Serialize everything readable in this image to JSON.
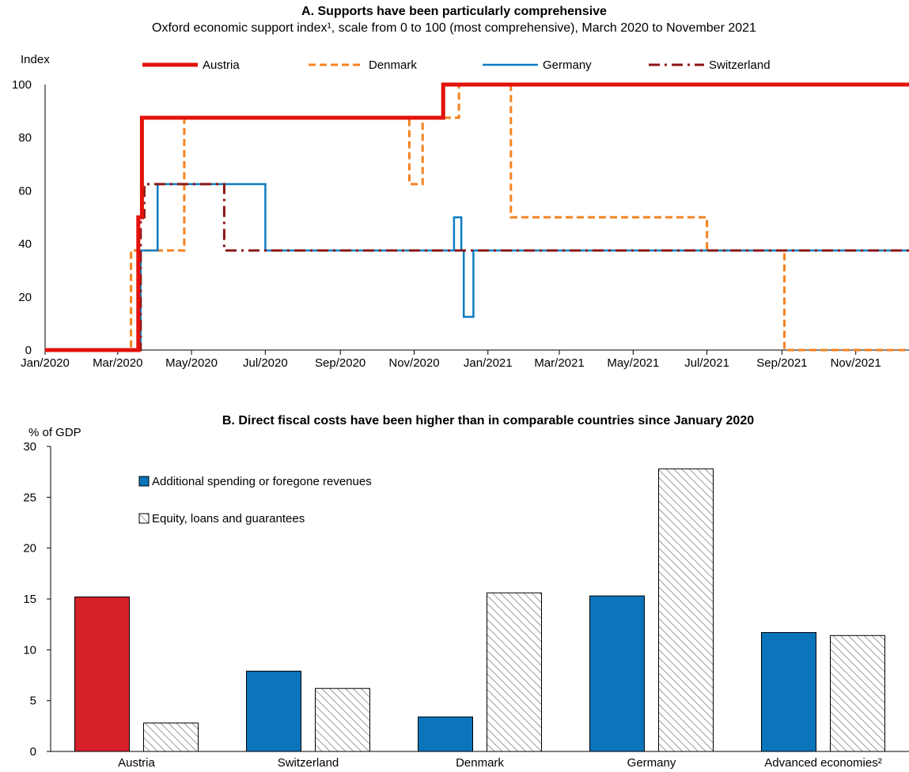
{
  "chart_data": [
    {
      "type": "line",
      "title": "A. Supports have been particularly comprehensive",
      "subtitle": "Oxford economic support index¹, scale from 0 to 100 (most comprehensive), March 2020 to November 2021",
      "ylabel": "Index",
      "ylim": [
        0,
        100
      ],
      "yticks": [
        "0",
        "20",
        "40",
        "60",
        "80",
        "100"
      ],
      "xlim": [
        "2020-01-01",
        "2021-12-15"
      ],
      "xticks": [
        {
          "date": "2020-01-01",
          "label": "Jan/2020"
        },
        {
          "date": "2020-03-01",
          "label": "Mar/2020"
        },
        {
          "date": "2020-05-01",
          "label": "May/2020"
        },
        {
          "date": "2020-07-01",
          "label": "Jul/2020"
        },
        {
          "date": "2020-09-01",
          "label": "Sep/2020"
        },
        {
          "date": "2020-11-01",
          "label": "Nov/2020"
        },
        {
          "date": "2021-01-01",
          "label": "Jan/2021"
        },
        {
          "date": "2021-03-01",
          "label": "Mar/2021"
        },
        {
          "date": "2021-05-01",
          "label": "May/2021"
        },
        {
          "date": "2021-07-01",
          "label": "Jul/2021"
        },
        {
          "date": "2021-09-01",
          "label": "Sep/2021"
        },
        {
          "date": "2021-11-01",
          "label": "Nov/2021"
        }
      ],
      "legend_position": "top",
      "series": [
        {
          "name": "Austria",
          "color": "#e3120b",
          "style": "solid-thick",
          "points": [
            [
              "2020-01-01",
              0
            ],
            [
              "2020-03-18",
              0
            ],
            [
              "2020-03-18",
              50
            ],
            [
              "2020-03-21",
              50
            ],
            [
              "2020-03-21",
              87.5
            ],
            [
              "2020-11-25",
              87.5
            ],
            [
              "2020-11-25",
              100
            ],
            [
              "2021-12-15",
              100
            ]
          ]
        },
        {
          "name": "Denmark",
          "color": "#f58220",
          "style": "dash",
          "points": [
            [
              "2020-01-01",
              0
            ],
            [
              "2020-03-12",
              0
            ],
            [
              "2020-03-12",
              37.5
            ],
            [
              "2020-04-25",
              37.5
            ],
            [
              "2020-04-25",
              87.5
            ],
            [
              "2020-10-28",
              87.5
            ],
            [
              "2020-10-28",
              62.5
            ],
            [
              "2020-11-08",
              62.5
            ],
            [
              "2020-11-08",
              87.5
            ],
            [
              "2020-12-08",
              87.5
            ],
            [
              "2020-12-08",
              100
            ],
            [
              "2021-01-20",
              100
            ],
            [
              "2021-01-20",
              50
            ],
            [
              "2021-07-01",
              50
            ],
            [
              "2021-07-01",
              37.5
            ],
            [
              "2021-09-03",
              37.5
            ],
            [
              "2021-09-03",
              0
            ],
            [
              "2021-12-15",
              0
            ]
          ]
        },
        {
          "name": "Germany",
          "color": "#0b7dc2",
          "style": "solid",
          "points": [
            [
              "2020-01-01",
              0
            ],
            [
              "2020-03-20",
              0
            ],
            [
              "2020-03-20",
              37.5
            ],
            [
              "2020-04-03",
              37.5
            ],
            [
              "2020-04-03",
              62.5
            ],
            [
              "2020-07-01",
              62.5
            ],
            [
              "2020-07-01",
              37.5
            ],
            [
              "2020-12-04",
              37.5
            ],
            [
              "2020-12-04",
              50
            ],
            [
              "2020-12-10",
              50
            ],
            [
              "2020-12-10",
              37.5
            ],
            [
              "2020-12-12",
              37.5
            ],
            [
              "2020-12-12",
              12.5
            ],
            [
              "2020-12-20",
              12.5
            ],
            [
              "2020-12-20",
              37.5
            ],
            [
              "2021-12-15",
              37.5
            ]
          ]
        },
        {
          "name": "Switzerland",
          "color": "#8b1515",
          "style": "dashdot",
          "points": [
            [
              "2020-01-01",
              0
            ],
            [
              "2020-03-20",
              0
            ],
            [
              "2020-03-20",
              50
            ],
            [
              "2020-03-23",
              50
            ],
            [
              "2020-03-23",
              62.5
            ],
            [
              "2020-05-28",
              62.5
            ],
            [
              "2020-05-28",
              37.5
            ],
            [
              "2021-12-15",
              37.5
            ]
          ]
        }
      ]
    },
    {
      "type": "bar",
      "title": "B. Direct fiscal costs have been higher than in comparable countries since January 2020",
      "ylabel": "% of GDP",
      "ylim": [
        0,
        30
      ],
      "yticks": [
        "0",
        "5",
        "10",
        "15",
        "20",
        "25",
        "30"
      ],
      "categories": [
        "Austria",
        "Switzerland",
        "Denmark",
        "Germany",
        "Advanced economies²"
      ],
      "legend_position": "top-left",
      "series": [
        {
          "name": "Additional spending or foregone revenues",
          "color": "#0b74bb",
          "values": [
            15.2,
            7.9,
            3.4,
            15.3,
            11.7
          ]
        },
        {
          "name": "Equity, loans and guarantees",
          "color": "hatched-gray",
          "values": [
            2.8,
            6.2,
            15.6,
            27.8,
            11.4
          ]
        }
      ],
      "highlight": {
        "category": "Austria",
        "color": "#d6212b"
      }
    }
  ]
}
